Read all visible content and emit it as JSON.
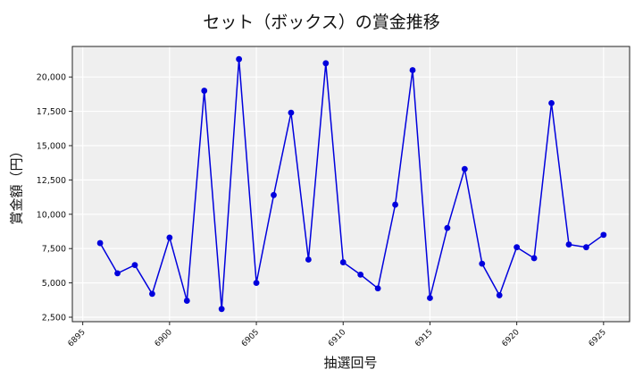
{
  "chart_data": {
    "type": "line",
    "title": "セット（ボックス）の賞金推移",
    "xlabel": "抽選回号",
    "ylabel": "賞金額（円）",
    "x": [
      6896,
      6897,
      6898,
      6899,
      6900,
      6901,
      6902,
      6903,
      6904,
      6905,
      6906,
      6907,
      6908,
      6909,
      6910,
      6911,
      6912,
      6913,
      6914,
      6915,
      6916,
      6917,
      6918,
      6919,
      6920,
      6921,
      6922,
      6923,
      6924,
      6925
    ],
    "series": [
      {
        "name": "セット（ボックス）",
        "color": "#0000dd",
        "marker": "circle",
        "values": [
          7900,
          5700,
          6300,
          4200,
          8300,
          3700,
          19000,
          3100,
          21300,
          5000,
          11400,
          17400,
          6700,
          21000,
          6500,
          5600,
          4600,
          10700,
          20500,
          3900,
          9000,
          13300,
          6400,
          4100,
          7600,
          6800,
          18100,
          7800,
          7600,
          8500
        ]
      }
    ],
    "xlim": [
      6894.4,
      6926.5
    ],
    "ylim": [
      2175,
      22225
    ],
    "xticks": [
      6895,
      6900,
      6905,
      6910,
      6915,
      6920,
      6925
    ],
    "xtick_labels": [
      "6895",
      "6900",
      "6905",
      "6910",
      "6915",
      "6920",
      "6925"
    ],
    "yticks": [
      2500,
      5000,
      7500,
      10000,
      12500,
      15000,
      17500,
      20000
    ],
    "ytick_labels": [
      "2,500",
      "5,000",
      "7,500",
      "10,000",
      "12,500",
      "15,000",
      "17,500",
      "20,000"
    ],
    "grid": true,
    "legend": null,
    "colors": {
      "plot_background": "#efefef",
      "grid": "#ffffff",
      "line": "#0000dd",
      "axis": "#222222"
    }
  }
}
